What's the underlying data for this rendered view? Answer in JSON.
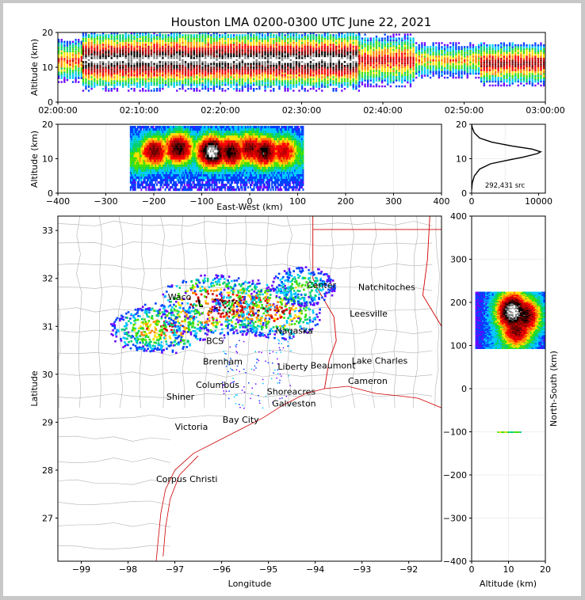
{
  "title": "Houston LMA 0200-0300 UTC June 22, 2021",
  "time_panel": {
    "ylabel": "Altitude (km)",
    "yticks": [
      "0",
      "10",
      "20"
    ],
    "xticks": [
      "02:00:00",
      "02:10:00",
      "02:20:00",
      "02:30:00",
      "02:40:00",
      "02:50:00",
      "03:00:00"
    ]
  },
  "ew_panel": {
    "ylabel": "Altitude (km)",
    "xlabel": "East-West (km)",
    "xticks": [
      "−400",
      "−300",
      "−200",
      "−100",
      "0",
      "100",
      "200",
      "300",
      "400"
    ],
    "yticks": [
      "0",
      "10",
      "20"
    ]
  },
  "hist_panel": {
    "xticks": [
      "0",
      "10000"
    ],
    "yticks": [
      "0",
      "10",
      "20"
    ],
    "annotation": "292,431 src"
  },
  "map_panel": {
    "xlabel": "Longitude",
    "ylabel": "Latitude",
    "xticks": [
      "−99",
      "−98",
      "−97",
      "−96",
      "−95",
      "−94",
      "−93",
      "−92"
    ],
    "yticks": [
      "27",
      "28",
      "29",
      "30",
      "31",
      "32",
      "33"
    ],
    "cities": [
      {
        "name": "Waco",
        "lon": -97.15,
        "lat": 31.55
      },
      {
        "name": "Center",
        "lon": -94.18,
        "lat": 31.8
      },
      {
        "name": "Natchitoches",
        "lon": -93.08,
        "lat": 31.76
      },
      {
        "name": "Leesville",
        "lon": -93.26,
        "lat": 31.2
      },
      {
        "name": "Nagaska",
        "lon": -94.85,
        "lat": 30.85
      },
      {
        "name": "BCS",
        "lon": -96.33,
        "lat": 30.63
      },
      {
        "name": "Brenham",
        "lon": -96.4,
        "lat": 30.2
      },
      {
        "name": "Liberty",
        "lon": -94.8,
        "lat": 30.1
      },
      {
        "name": "Beaumont",
        "lon": -94.1,
        "lat": 30.12
      },
      {
        "name": "Lake Charles",
        "lon": -93.22,
        "lat": 30.22
      },
      {
        "name": "Cameron",
        "lon": -93.3,
        "lat": 29.8
      },
      {
        "name": "Columbus",
        "lon": -96.55,
        "lat": 29.72
      },
      {
        "name": "Shoreacres",
        "lon": -95.03,
        "lat": 29.58
      },
      {
        "name": "Shiner",
        "lon": -97.18,
        "lat": 29.47
      },
      {
        "name": "Galveston",
        "lon": -94.92,
        "lat": 29.33
      },
      {
        "name": "Bay City",
        "lon": -95.98,
        "lat": 28.99
      },
      {
        "name": "Victoria",
        "lon": -97.0,
        "lat": 28.84
      },
      {
        "name": "Corpus Christi",
        "lon": -97.4,
        "lat": 27.75
      }
    ]
  },
  "ns_panel": {
    "ylabel": "North-South (km)",
    "xlabel": "Altitude (km)",
    "yticks": [
      "400",
      "300",
      "200",
      "100",
      "0",
      "−100",
      "−200",
      "−300",
      "−400"
    ],
    "xticks": [
      "0",
      "10",
      "20"
    ]
  },
  "colors": {
    "density_scale": [
      "#6a00ff",
      "#0040ff",
      "#00c8ff",
      "#00d070",
      "#40e000",
      "#ffe000",
      "#ff8000",
      "#ff0000",
      "#c00000",
      "#700000",
      "#000000",
      "#808080",
      "#ffffff"
    ],
    "state_border": "#d00000",
    "county_lines": "#b0b0b0"
  },
  "chart_data": [
    {
      "type": "heatmap",
      "name_hint": "time-altitude",
      "x_range": [
        "02:00:00",
        "03:00:00"
      ],
      "ylim": [
        0,
        20
      ],
      "bands": [
        {
          "x": [
            "02:00",
            "02:03"
          ],
          "core": 12,
          "half": 5,
          "max_level": 7
        },
        {
          "x": [
            "02:03",
            "02:37"
          ],
          "core": 12,
          "half": 7,
          "max_level": 12
        },
        {
          "x": [
            "02:37",
            "02:44"
          ],
          "core": 12,
          "half": 6,
          "max_level": 8
        },
        {
          "x": [
            "02:44",
            "02:52"
          ],
          "core": 12,
          "half": 4,
          "max_level": 6
        },
        {
          "x": [
            "02:52",
            "03:00"
          ],
          "core": 11,
          "half": 5,
          "max_level": 9
        }
      ]
    },
    {
      "type": "heatmap",
      "name_hint": "east-west-altitude",
      "xlim": [
        -400,
        400
      ],
      "ylim": [
        0,
        20
      ],
      "cells": [
        {
          "x": -200,
          "z": 12,
          "level": 9
        },
        {
          "x": -150,
          "z": 13,
          "level": 10
        },
        {
          "x": -80,
          "z": 12,
          "level": 12
        },
        {
          "x": -40,
          "z": 12,
          "level": 10
        },
        {
          "x": 0,
          "z": 13,
          "level": 9
        },
        {
          "x": 30,
          "z": 12,
          "level": 10
        },
        {
          "x": 70,
          "z": 12,
          "level": 8
        },
        {
          "x": -230,
          "z": 10,
          "level": 5
        },
        {
          "x": 100,
          "z": 11,
          "level": 4
        }
      ]
    },
    {
      "type": "line",
      "name_hint": "altitude-histogram",
      "xlim": [
        0,
        11000
      ],
      "ylim": [
        0,
        20
      ],
      "points": [
        [
          0,
          1
        ],
        [
          100,
          3
        ],
        [
          400,
          5
        ],
        [
          1200,
          7
        ],
        [
          2800,
          8.5
        ],
        [
          5200,
          9.5
        ],
        [
          7800,
          10.5
        ],
        [
          9800,
          11.5
        ],
        [
          10300,
          12
        ],
        [
          9000,
          12.8
        ],
        [
          6000,
          13.7
        ],
        [
          3000,
          14.8
        ],
        [
          1200,
          16
        ],
        [
          400,
          17.5
        ],
        [
          100,
          19
        ],
        [
          0,
          20
        ]
      ]
    },
    {
      "type": "scatter",
      "name_hint": "plan-view",
      "xlim": [
        -99.5,
        -91.3
      ],
      "ylim": [
        26.1,
        33.3
      ],
      "clusters": [
        {
          "lon": -97.2,
          "lat": 31.0,
          "level": 9
        },
        {
          "lon": -96.3,
          "lat": 31.45,
          "level": 12
        },
        {
          "lon": -95.85,
          "lat": 31.45,
          "level": 11
        },
        {
          "lon": -95.25,
          "lat": 31.4,
          "level": 10
        },
        {
          "lon": -94.8,
          "lat": 31.3,
          "level": 9
        },
        {
          "lon": -94.28,
          "lat": 31.85,
          "level": 5
        },
        {
          "lon": -97.6,
          "lat": 30.95,
          "level": 7
        }
      ]
    },
    {
      "type": "heatmap",
      "name_hint": "north-south-altitude",
      "xlim": [
        0,
        20
      ],
      "ylim": [
        -400,
        400
      ],
      "cells": [
        {
          "x": 11,
          "y": 180,
          "level": 12
        },
        {
          "x": 12,
          "y": 140,
          "level": 9
        },
        {
          "x": 14,
          "y": 170,
          "level": 10
        },
        {
          "x": 10,
          "y": -100,
          "level": 5
        }
      ]
    }
  ]
}
